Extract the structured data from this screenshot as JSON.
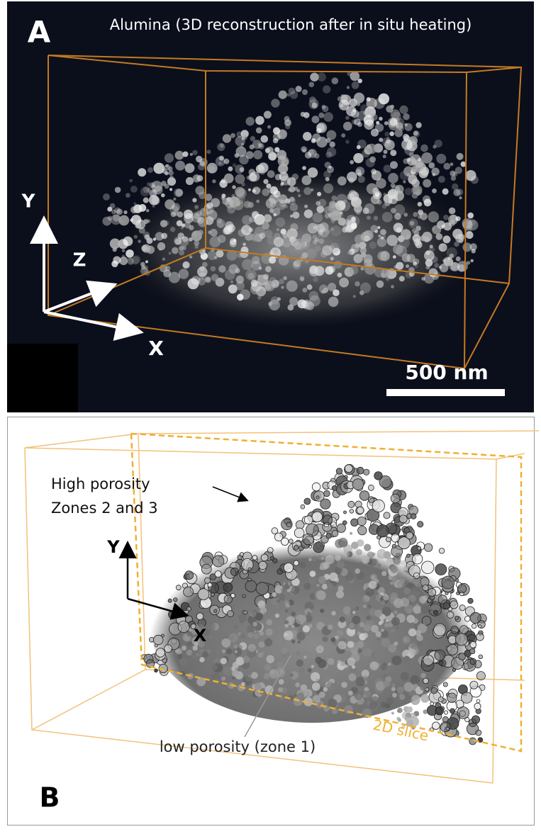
{
  "panels": [
    {
      "label": "A",
      "title": "Alumina (3D reconstruction after in situ heating)",
      "axes": {
        "y": "Y",
        "z": "Z",
        "x": "X"
      },
      "scale_bar": "500 nm"
    },
    {
      "label": "B",
      "annotations": {
        "high": [
          "High porosity",
          "Zones 2  and 3"
        ],
        "low": "low porosity (zone 1)",
        "slice": "2D slice"
      },
      "axes": {
        "y": "Y",
        "x": "X"
      }
    }
  ]
}
